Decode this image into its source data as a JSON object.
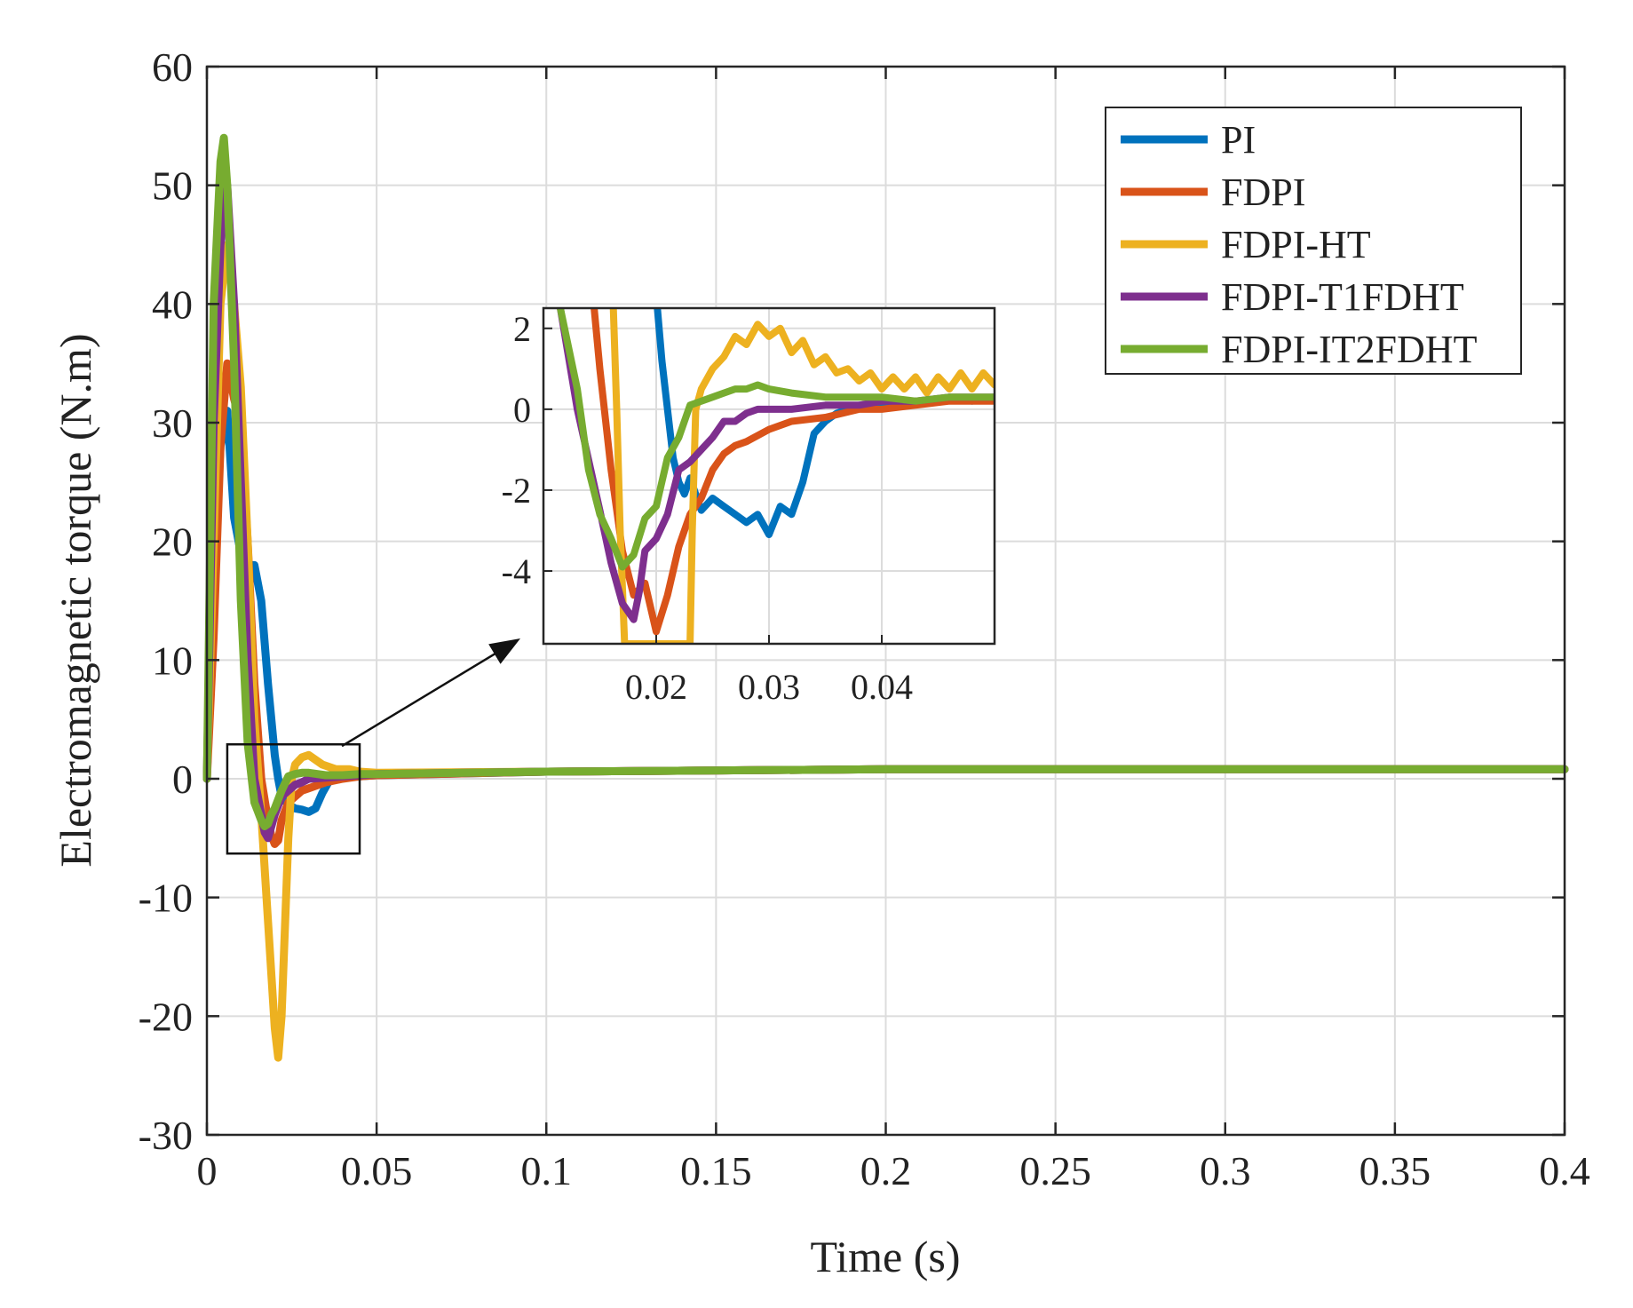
{
  "chart_data": [
    {
      "type": "line",
      "role": "main",
      "xlabel": "Time (s)",
      "ylabel": "Electromagnetic torque (N.m)",
      "xlim": [
        0,
        0.4
      ],
      "ylim": [
        -30,
        60
      ],
      "grid": true,
      "legend_position": "top-right",
      "xticks": [
        0,
        0.05,
        0.1,
        0.15,
        0.2,
        0.25,
        0.3,
        0.35,
        0.4
      ],
      "xtick_labels": [
        "0",
        "0.05",
        "0.1",
        "0.15",
        "0.2",
        "0.25",
        "0.3",
        "0.35",
        "0.4"
      ],
      "yticks": [
        -30,
        -20,
        -10,
        0,
        10,
        20,
        30,
        40,
        50,
        60
      ],
      "ytick_labels": [
        "-30",
        "-20",
        "-10",
        "0",
        "10",
        "20",
        "30",
        "40",
        "50",
        "60"
      ],
      "zoom_box": {
        "x": [
          0.006,
          0.045
        ],
        "y": [
          -6.3,
          2.9
        ]
      },
      "series": [
        {
          "name": "PI",
          "color": "#0072BD",
          "x": [
            0,
            0.002,
            0.004,
            0.006,
            0.008,
            0.01,
            0.012,
            0.014,
            0.016,
            0.018,
            0.02,
            0.021,
            0.022,
            0.024,
            0.026,
            0.028,
            0.03,
            0.032,
            0.034,
            0.036,
            0.04,
            0.045,
            0.05,
            0.1,
            0.2,
            0.3,
            0.4
          ],
          "y": [
            0,
            18,
            28,
            31,
            22,
            19,
            18,
            18,
            15,
            8,
            2,
            0,
            -1.5,
            -2.2,
            -2.5,
            -2.6,
            -2.8,
            -2.5,
            -1.2,
            -0.2,
            0.1,
            0.2,
            0.3,
            0.6,
            0.8,
            0.8,
            0.8
          ]
        },
        {
          "name": "FDPI",
          "color": "#D95319",
          "x": [
            0,
            0.002,
            0.004,
            0.006,
            0.008,
            0.01,
            0.012,
            0.014,
            0.016,
            0.018,
            0.019,
            0.02,
            0.021,
            0.022,
            0.024,
            0.026,
            0.028,
            0.03,
            0.035,
            0.04,
            0.045,
            0.05,
            0.1,
            0.2,
            0.3,
            0.4
          ],
          "y": [
            0,
            12,
            28,
            35,
            32,
            30,
            20,
            8,
            0,
            -3.5,
            -4.8,
            -5.5,
            -5.2,
            -3.5,
            -2,
            -1.5,
            -1,
            -0.8,
            -0.3,
            0,
            0.2,
            0.3,
            0.6,
            0.8,
            0.8,
            0.8
          ]
        },
        {
          "name": "FDPI-HT",
          "color": "#EDB120",
          "x": [
            0,
            0.002,
            0.004,
            0.006,
            0.008,
            0.01,
            0.012,
            0.014,
            0.016,
            0.018,
            0.02,
            0.021,
            0.022,
            0.024,
            0.025,
            0.026,
            0.028,
            0.03,
            0.034,
            0.038,
            0.042,
            0.045,
            0.05,
            0.1,
            0.2,
            0.3,
            0.4
          ],
          "y": [
            0,
            20,
            40,
            45,
            40,
            33,
            20,
            5,
            -3,
            -12,
            -21,
            -23.5,
            -20,
            -5,
            0,
            1.2,
            1.8,
            2,
            1.2,
            0.8,
            0.8,
            0.6,
            0.5,
            0.6,
            0.8,
            0.8,
            0.8
          ]
        },
        {
          "name": "FDPI-T1FDHT",
          "color": "#7E2F8E",
          "x": [
            0,
            0.002,
            0.004,
            0.006,
            0.008,
            0.01,
            0.012,
            0.014,
            0.016,
            0.017,
            0.018,
            0.019,
            0.02,
            0.022,
            0.024,
            0.026,
            0.028,
            0.03,
            0.035,
            0.04,
            0.045,
            0.05,
            0.1,
            0.2,
            0.3,
            0.4
          ],
          "y": [
            0,
            30,
            45,
            50,
            40,
            25,
            10,
            0,
            -3,
            -4.5,
            -5,
            -4,
            -3,
            -1.5,
            -1,
            -0.5,
            -0.3,
            0,
            0.1,
            0.2,
            0.3,
            0.4,
            0.6,
            0.8,
            0.8,
            0.8
          ]
        },
        {
          "name": "FDPI-IT2FDHT",
          "color": "#77AC30",
          "x": [
            0,
            0.002,
            0.004,
            0.005,
            0.006,
            0.008,
            0.01,
            0.012,
            0.014,
            0.016,
            0.017,
            0.018,
            0.019,
            0.02,
            0.022,
            0.024,
            0.026,
            0.028,
            0.03,
            0.035,
            0.04,
            0.045,
            0.05,
            0.1,
            0.2,
            0.3,
            0.4
          ],
          "y": [
            0,
            40,
            52,
            54,
            50,
            35,
            15,
            3,
            -2,
            -3.5,
            -4,
            -3.8,
            -3,
            -2.5,
            -1,
            0.2,
            0.4,
            0.5,
            0.5,
            0.3,
            0.3,
            0.4,
            0.4,
            0.6,
            0.8,
            0.8,
            0.8
          ]
        }
      ]
    },
    {
      "type": "line",
      "role": "inset",
      "xlim": [
        0.01,
        0.05
      ],
      "ylim": [
        -5.8,
        2.5
      ],
      "grid": true,
      "xticks": [
        0.02,
        0.03,
        0.04
      ],
      "xtick_labels": [
        "0.02",
        "0.03",
        "0.04"
      ],
      "yticks": [
        -4,
        -2,
        0,
        2
      ],
      "ytick_labels": [
        "-4",
        "-2",
        "0",
        "2"
      ],
      "series": [
        {
          "name": "PI",
          "color": "#0072BD",
          "x": [
            0.0201,
            0.0205,
            0.021,
            0.0215,
            0.022,
            0.0225,
            0.023,
            0.024,
            0.025,
            0.026,
            0.027,
            0.028,
            0.029,
            0.03,
            0.031,
            0.032,
            0.033,
            0.034,
            0.035,
            0.036,
            0.037,
            0.038,
            0.04,
            0.042,
            0.044,
            0.046,
            0.048,
            0.05
          ],
          "y": [
            2.5,
            1.2,
            0,
            -1.2,
            -1.8,
            -2.1,
            -1.7,
            -2.5,
            -2.2,
            -2.4,
            -2.6,
            -2.8,
            -2.6,
            -3.1,
            -2.4,
            -2.6,
            -1.8,
            -0.6,
            -0.3,
            -0.1,
            0,
            0.1,
            0.1,
            0.2,
            0.2,
            0.3,
            0.2,
            0.3
          ]
        },
        {
          "name": "FDPI",
          "color": "#D95319",
          "x": [
            0.0145,
            0.015,
            0.016,
            0.017,
            0.018,
            0.019,
            0.02,
            0.021,
            0.022,
            0.023,
            0.024,
            0.025,
            0.026,
            0.027,
            0.028,
            0.03,
            0.032,
            0.035,
            0.038,
            0.04,
            0.043,
            0.046,
            0.05
          ],
          "y": [
            2.5,
            1,
            -1.5,
            -3.5,
            -4.6,
            -4.3,
            -5.5,
            -4.6,
            -3.4,
            -2.6,
            -2.2,
            -1.5,
            -1.1,
            -0.9,
            -0.8,
            -0.5,
            -0.3,
            -0.2,
            0,
            0,
            0.1,
            0.2,
            0.2
          ]
        },
        {
          "name": "FDPI-HT",
          "color": "#EDB120",
          "x": [
            0.0162,
            0.0165,
            0.0168,
            0.0172,
            0.0178,
            0.0225,
            0.023,
            0.0232,
            0.0235,
            0.024,
            0.025,
            0.026,
            0.027,
            0.028,
            0.029,
            0.03,
            0.031,
            0.032,
            0.033,
            0.034,
            0.035,
            0.036,
            0.037,
            0.038,
            0.039,
            0.04,
            0.041,
            0.042,
            0.043,
            0.044,
            0.045,
            0.046,
            0.047,
            0.048,
            0.049,
            0.05
          ],
          "y": [
            2.5,
            0,
            -3,
            -5.8,
            -5.8,
            -5.8,
            -5.8,
            -3,
            0,
            0.5,
            1,
            1.3,
            1.8,
            1.6,
            2.1,
            1.8,
            2.0,
            1.4,
            1.7,
            1.1,
            1.3,
            0.9,
            1.0,
            0.7,
            0.9,
            0.5,
            0.8,
            0.5,
            0.8,
            0.4,
            0.8,
            0.5,
            0.9,
            0.5,
            0.9,
            0.6
          ]
        },
        {
          "name": "FDPI-T1FDHT",
          "color": "#7E2F8E",
          "x": [
            0.0115,
            0.013,
            0.015,
            0.016,
            0.017,
            0.018,
            0.0185,
            0.019,
            0.02,
            0.021,
            0.022,
            0.023,
            0.024,
            0.025,
            0.026,
            0.027,
            0.028,
            0.029,
            0.03,
            0.032,
            0.035,
            0.038,
            0.04,
            0.043,
            0.046,
            0.048,
            0.05
          ],
          "y": [
            2.5,
            0,
            -2.5,
            -3.8,
            -4.8,
            -5.2,
            -4.5,
            -3.5,
            -3.2,
            -2.6,
            -1.5,
            -1.3,
            -1.0,
            -0.7,
            -0.3,
            -0.3,
            -0.1,
            0,
            0,
            0,
            0.1,
            0.1,
            0.2,
            0.2,
            0.3,
            0.3,
            0.3
          ]
        },
        {
          "name": "FDPI-IT2FDHT",
          "color": "#77AC30",
          "x": [
            0.0115,
            0.013,
            0.014,
            0.015,
            0.016,
            0.017,
            0.018,
            0.019,
            0.02,
            0.021,
            0.022,
            0.023,
            0.024,
            0.025,
            0.026,
            0.027,
            0.028,
            0.029,
            0.03,
            0.032,
            0.035,
            0.038,
            0.04,
            0.043,
            0.046,
            0.048,
            0.05
          ],
          "y": [
            2.5,
            0.5,
            -1.5,
            -2.6,
            -3.2,
            -3.9,
            -3.6,
            -2.7,
            -2.4,
            -1.2,
            -0.7,
            0.1,
            0.2,
            0.3,
            0.4,
            0.5,
            0.5,
            0.6,
            0.5,
            0.4,
            0.3,
            0.3,
            0.3,
            0.2,
            0.3,
            0.3,
            0.3
          ]
        }
      ]
    }
  ]
}
